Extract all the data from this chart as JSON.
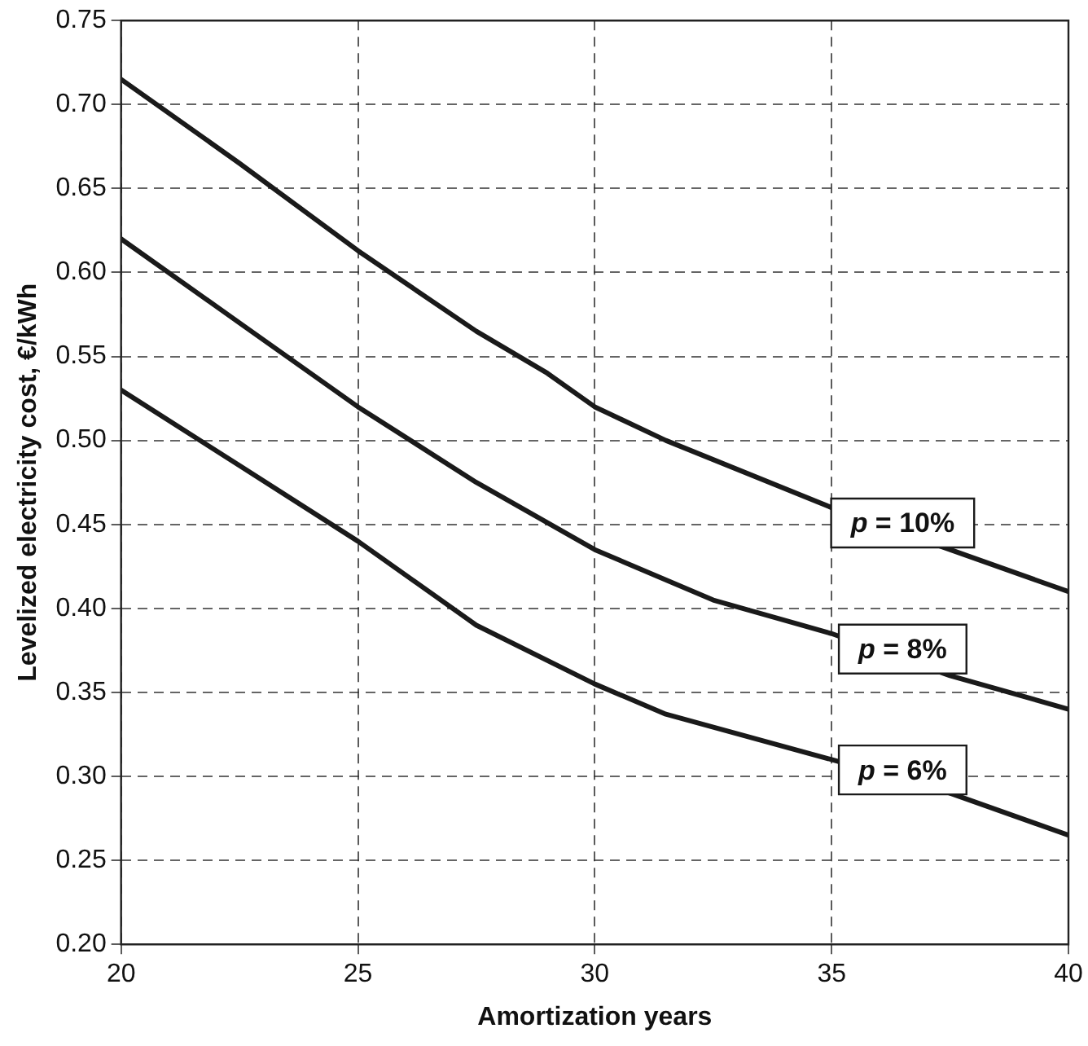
{
  "chart_data": {
    "type": "line",
    "xlabel": "Amortization years",
    "ylabel": "Levelized electricity cost, €/kWh",
    "xlim": [
      20,
      40
    ],
    "xticks": [
      20,
      25,
      30,
      35,
      40
    ],
    "ylim": [
      0.2,
      0.75
    ],
    "yticks": [
      {
        "value": 0.2,
        "label": "0.20"
      },
      0.25,
      {
        "value": 0.3,
        "label": "0.30"
      },
      0.35,
      {
        "value": 0.4,
        "label": "0.40"
      },
      0.45,
      {
        "value": 0.5,
        "label": "0.50"
      },
      0.55,
      {
        "value": 0.6,
        "label": "0.60"
      },
      0.65,
      {
        "value": 0.7,
        "label": "0.70"
      },
      0.75
    ],
    "grid": true,
    "legend": false,
    "marker": "none",
    "line_style": "solid",
    "series": [
      {
        "name": "p = 10%",
        "color": "#1a1a1a",
        "x": [
          20,
          22.5,
          25,
          27.5,
          29,
          30,
          31.5,
          35,
          40
        ],
        "values": [
          0.715,
          0.665,
          0.613,
          0.565,
          0.54,
          0.52,
          0.5,
          0.46,
          0.41
        ]
      },
      {
        "name": "p = 8%",
        "color": "#1a1a1a",
        "x": [
          20,
          22.5,
          25,
          27.5,
          30,
          32.5,
          35,
          37.5,
          40
        ],
        "values": [
          0.62,
          0.57,
          0.52,
          0.475,
          0.435,
          0.405,
          0.385,
          0.36,
          0.34
        ]
      },
      {
        "name": "p = 6%",
        "color": "#1a1a1a",
        "x": [
          20,
          22.5,
          25,
          27.5,
          30,
          31.5,
          35,
          37.5,
          40
        ],
        "values": [
          0.53,
          0.485,
          0.44,
          0.39,
          0.355,
          0.337,
          0.31,
          0.29,
          0.265
        ]
      }
    ]
  }
}
